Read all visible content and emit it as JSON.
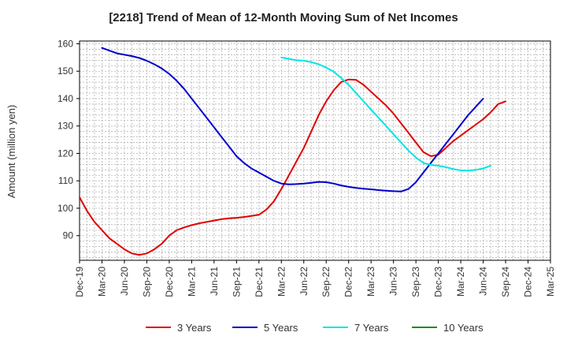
{
  "chart_data": {
    "type": "line",
    "title": "[2218]  Trend of Mean of 12-Month Moving Sum of Net Incomes",
    "ylabel": "Amount (million yen)",
    "xlabel": "",
    "ylim": [
      81,
      161
    ],
    "yticks": [
      90,
      100,
      110,
      120,
      130,
      140,
      150,
      160
    ],
    "xticks": [
      "Dec-19",
      "Mar-20",
      "Jun-20",
      "Sep-20",
      "Dec-20",
      "Mar-21",
      "Jun-21",
      "Sep-21",
      "Dec-21",
      "Mar-22",
      "Jun-22",
      "Sep-22",
      "Dec-22",
      "Mar-23",
      "Jun-23",
      "Sep-23",
      "Dec-23",
      "Mar-24",
      "Jun-24",
      "Sep-24",
      "Dec-24",
      "Mar-25"
    ],
    "grid": true,
    "legend_position": "bottom",
    "series": [
      {
        "name": "3 Years",
        "color": "#e00000",
        "points": [
          [
            "Dec-19",
            104
          ],
          [
            "Jan-20",
            99
          ],
          [
            "Feb-20",
            95
          ],
          [
            "Mar-20",
            92
          ],
          [
            "Apr-20",
            89
          ],
          [
            "May-20",
            87
          ],
          [
            "Jun-20",
            85
          ],
          [
            "Jul-20",
            83.5
          ],
          [
            "Aug-20",
            83
          ],
          [
            "Sep-20",
            83.5
          ],
          [
            "Oct-20",
            85
          ],
          [
            "Nov-20",
            87
          ],
          [
            "Dec-20",
            90
          ],
          [
            "Jan-21",
            92
          ],
          [
            "Feb-21",
            93
          ],
          [
            "Mar-21",
            93.8
          ],
          [
            "Apr-21",
            94.5
          ],
          [
            "May-21",
            95
          ],
          [
            "Jun-21",
            95.5
          ],
          [
            "Jul-21",
            96
          ],
          [
            "Aug-21",
            96.3
          ],
          [
            "Sep-21",
            96.5
          ],
          [
            "Oct-21",
            96.8
          ],
          [
            "Nov-21",
            97.2
          ],
          [
            "Dec-21",
            97.6
          ],
          [
            "Jan-22",
            99.5
          ],
          [
            "Feb-22",
            102.5
          ],
          [
            "Mar-22",
            107
          ],
          [
            "Apr-22",
            112
          ],
          [
            "May-22",
            117
          ],
          [
            "Jun-22",
            122
          ],
          [
            "Jul-22",
            128
          ],
          [
            "Aug-22",
            134
          ],
          [
            "Sep-22",
            139
          ],
          [
            "Oct-22",
            143
          ],
          [
            "Nov-22",
            146
          ],
          [
            "Dec-22",
            147
          ],
          [
            "Jan-23",
            146.8
          ],
          [
            "Feb-23",
            145
          ],
          [
            "Mar-23",
            142.5
          ],
          [
            "Apr-23",
            140
          ],
          [
            "May-23",
            137.5
          ],
          [
            "Jun-23",
            134.5
          ],
          [
            "Jul-23",
            131
          ],
          [
            "Aug-23",
            127.5
          ],
          [
            "Sep-23",
            124
          ],
          [
            "Oct-23",
            120.5
          ],
          [
            "Nov-23",
            119
          ],
          [
            "Dec-23",
            119.5
          ],
          [
            "Jan-24",
            122
          ],
          [
            "Feb-24",
            124.5
          ],
          [
            "Mar-24",
            126.5
          ],
          [
            "Apr-24",
            128.5
          ],
          [
            "May-24",
            130.5
          ],
          [
            "Jun-24",
            132.5
          ],
          [
            "Jul-24",
            135
          ],
          [
            "Aug-24",
            138
          ],
          [
            "Sep-24",
            139
          ]
        ]
      },
      {
        "name": "5 Years",
        "color": "#0000cc",
        "points": [
          [
            "Mar-20",
            158.5
          ],
          [
            "Apr-20",
            157.5
          ],
          [
            "May-20",
            156.5
          ],
          [
            "Jun-20",
            156
          ],
          [
            "Jul-20",
            155.5
          ],
          [
            "Aug-20",
            154.8
          ],
          [
            "Sep-20",
            153.8
          ],
          [
            "Oct-20",
            152.5
          ],
          [
            "Nov-20",
            151
          ],
          [
            "Dec-20",
            149
          ],
          [
            "Jan-21",
            146.5
          ],
          [
            "Feb-21",
            143.5
          ],
          [
            "Mar-21",
            140
          ],
          [
            "Apr-21",
            136.5
          ],
          [
            "May-21",
            133
          ],
          [
            "Jun-21",
            129.5
          ],
          [
            "Jul-21",
            126
          ],
          [
            "Aug-21",
            122.5
          ],
          [
            "Sep-21",
            119
          ],
          [
            "Oct-21",
            116.5
          ],
          [
            "Nov-21",
            114.5
          ],
          [
            "Dec-21",
            113
          ],
          [
            "Jan-22",
            111.5
          ],
          [
            "Feb-22",
            110
          ],
          [
            "Mar-22",
            109
          ],
          [
            "Apr-22",
            108.7
          ],
          [
            "May-22",
            108.8
          ],
          [
            "Jun-22",
            109
          ],
          [
            "Jul-22",
            109.3
          ],
          [
            "Aug-22",
            109.6
          ],
          [
            "Sep-22",
            109.5
          ],
          [
            "Oct-22",
            109
          ],
          [
            "Nov-22",
            108.3
          ],
          [
            "Dec-22",
            107.8
          ],
          [
            "Jan-23",
            107.4
          ],
          [
            "Feb-23",
            107.1
          ],
          [
            "Mar-23",
            106.9
          ],
          [
            "Apr-23",
            106.6
          ],
          [
            "May-23",
            106.4
          ],
          [
            "Jun-23",
            106.2
          ],
          [
            "Jul-23",
            106.1
          ],
          [
            "Aug-23",
            107
          ],
          [
            "Sep-23",
            109.5
          ],
          [
            "Oct-23",
            113
          ],
          [
            "Nov-23",
            116.5
          ],
          [
            "Dec-23",
            120
          ],
          [
            "Jan-24",
            123.5
          ],
          [
            "Feb-24",
            127
          ],
          [
            "Mar-24",
            130.5
          ],
          [
            "Apr-24",
            134
          ],
          [
            "May-24",
            137
          ],
          [
            "Jun-24",
            140
          ]
        ]
      },
      {
        "name": "7 Years",
        "color": "#00e5e5",
        "points": [
          [
            "Mar-22",
            155
          ],
          [
            "Apr-22",
            154.5
          ],
          [
            "May-22",
            154
          ],
          [
            "Jun-22",
            153.8
          ],
          [
            "Jul-22",
            153.3
          ],
          [
            "Aug-22",
            152.5
          ],
          [
            "Sep-22",
            151.3
          ],
          [
            "Oct-22",
            149.8
          ],
          [
            "Nov-22",
            147.5
          ],
          [
            "Dec-22",
            145
          ],
          [
            "Jan-23",
            142
          ],
          [
            "Feb-23",
            139
          ],
          [
            "Mar-23",
            136
          ],
          [
            "Apr-23",
            133
          ],
          [
            "May-23",
            130
          ],
          [
            "Jun-23",
            127
          ],
          [
            "Jul-23",
            124
          ],
          [
            "Aug-23",
            121
          ],
          [
            "Sep-23",
            118.5
          ],
          [
            "Oct-23",
            116.5
          ],
          [
            "Nov-23",
            115.8
          ],
          [
            "Dec-23",
            115.5
          ],
          [
            "Jan-24",
            115
          ],
          [
            "Feb-24",
            114.3
          ],
          [
            "Mar-24",
            113.8
          ],
          [
            "Apr-24",
            113.7
          ],
          [
            "May-24",
            114
          ],
          [
            "Jun-24",
            114.5
          ],
          [
            "Jul-24",
            115.5
          ]
        ]
      },
      {
        "name": "10 Years",
        "color": "#228b22",
        "points": []
      }
    ]
  }
}
